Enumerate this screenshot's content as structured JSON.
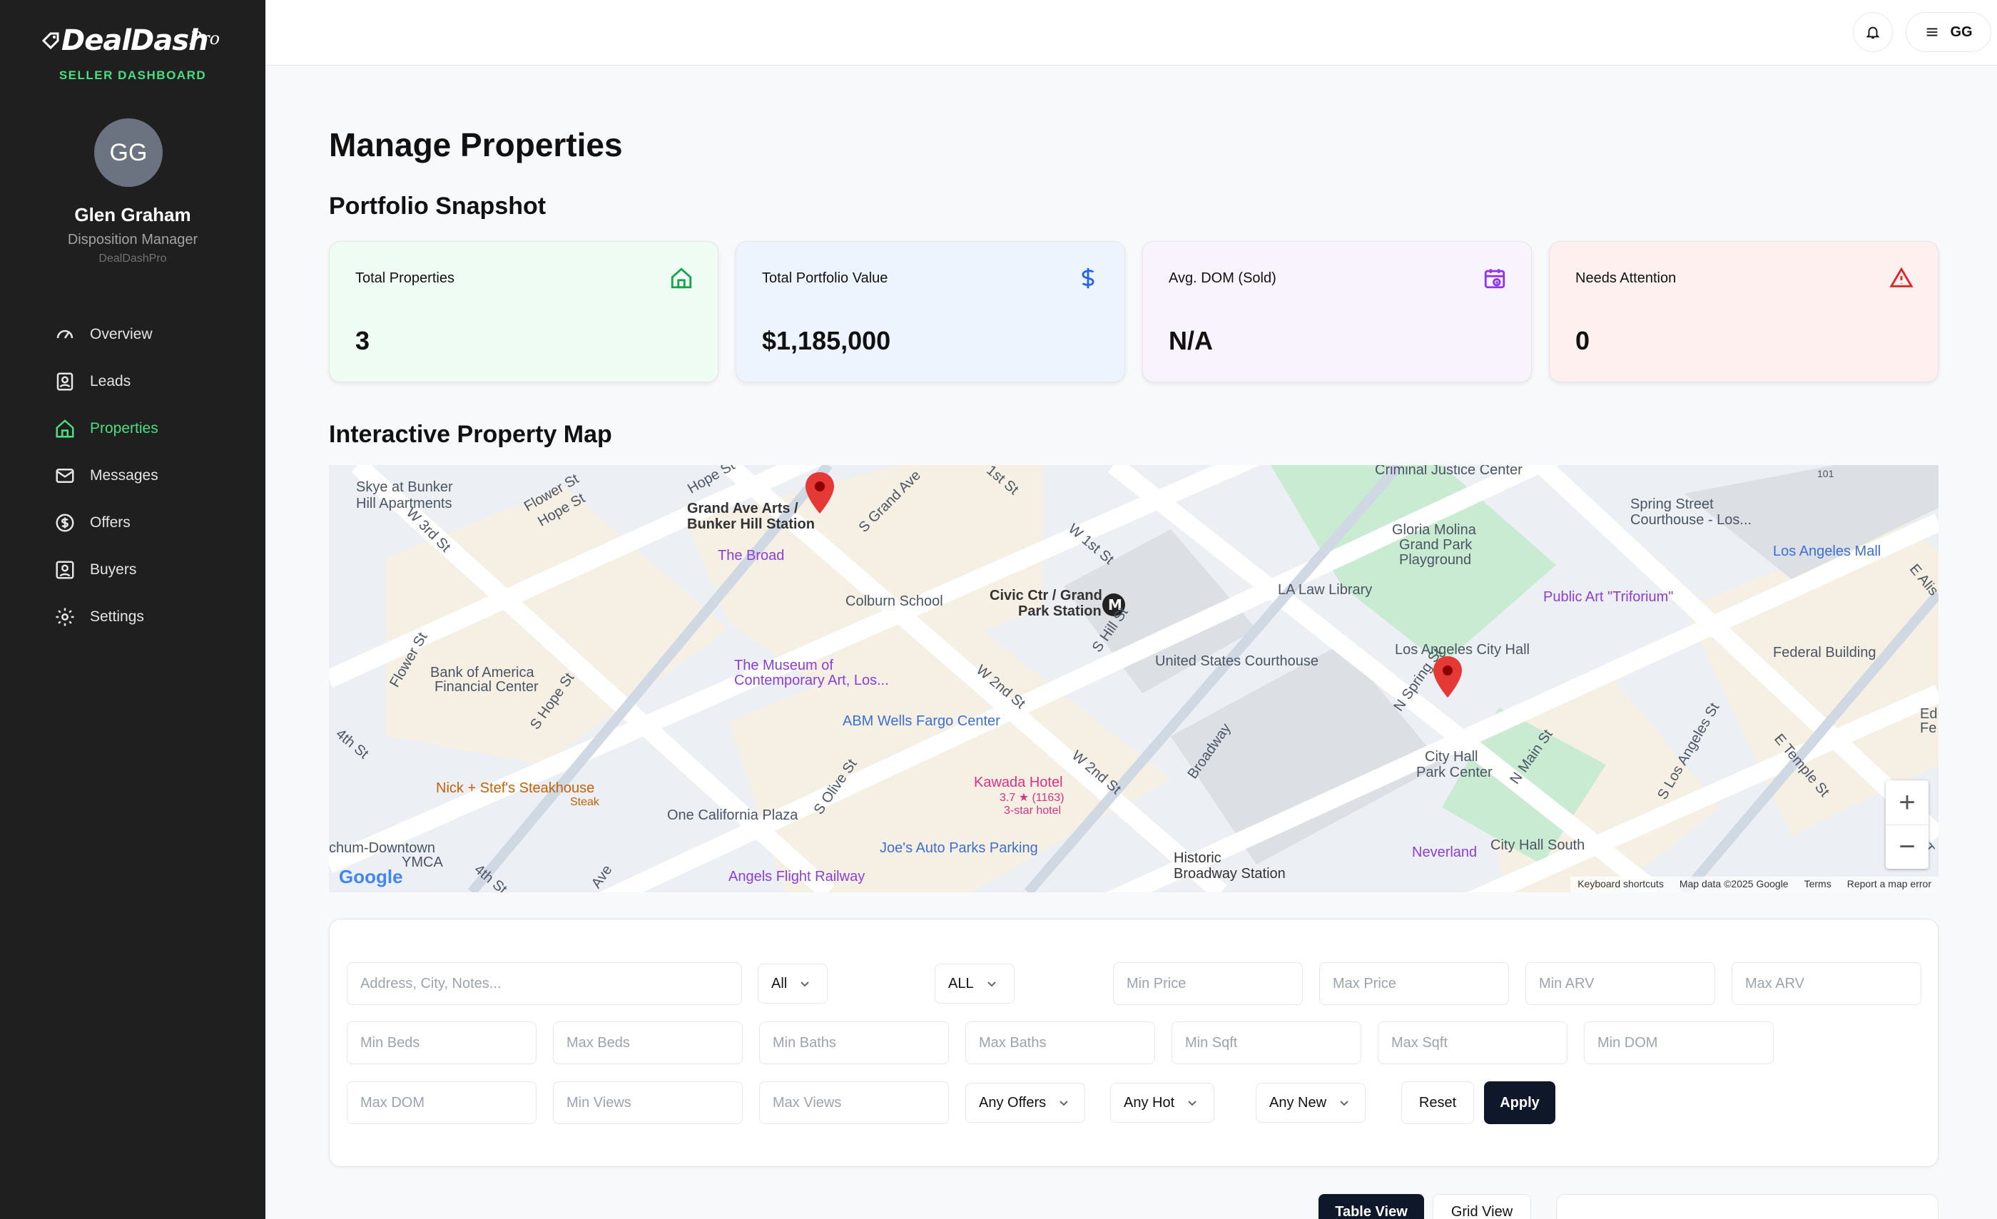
{
  "app": {
    "logo_text": "DealDash",
    "logo_suffix": "Pro",
    "subtitle": "SELLER DASHBOARD"
  },
  "user": {
    "initials": "GG",
    "name": "Glen Graham",
    "role": "Disposition Manager",
    "org": "DealDashPro"
  },
  "nav": [
    {
      "label": "Overview",
      "icon": "gauge-icon"
    },
    {
      "label": "Leads",
      "icon": "contact-icon"
    },
    {
      "label": "Properties",
      "icon": "home-icon",
      "active": true
    },
    {
      "label": "Messages",
      "icon": "mail-icon"
    },
    {
      "label": "Offers",
      "icon": "dollar-circle-icon"
    },
    {
      "label": "Buyers",
      "icon": "user-square-icon"
    },
    {
      "label": "Settings",
      "icon": "gear-icon"
    }
  ],
  "topbar": {
    "avatar_initials": "GG"
  },
  "page": {
    "title": "Manage Properties",
    "snapshot_title": "Portfolio Snapshot",
    "map_title": "Interactive Property Map"
  },
  "cards": [
    {
      "label": "Total Properties",
      "value": "3",
      "bg": "#effcf3",
      "icon_color": "#16a34a",
      "icon": "home-icon"
    },
    {
      "label": "Total Portfolio Value",
      "value": "$1,185,000",
      "bg": "#eef4fe",
      "icon_color": "#2563eb",
      "icon": "dollar-icon"
    },
    {
      "label": "Avg. DOM (Sold)",
      "value": "N/A",
      "bg": "#f8f3fd",
      "icon_color": "#9333ea",
      "icon": "calendar-clock-icon"
    },
    {
      "label": "Needs Attention",
      "value": "0",
      "bg": "#fdf0ef",
      "icon_color": "#dc2626",
      "icon": "alert-triangle-icon"
    }
  ],
  "map": {
    "labels": {
      "skye": "Skye at Bunker\nHill Apartments",
      "flower": "Flower St",
      "hope1": "Hope St",
      "hope2": "Hope St",
      "w3rd": "W 3rd St",
      "grand_ave_arts": "Grand Ave Arts /",
      "bunker_hill_station": "Bunker Hill Station",
      "s_grand_ave": "S Grand Ave",
      "the_broad": "The Broad",
      "colburn": "Colburn School",
      "civic_ctr": "Civic Ctr / Grand",
      "park_station": "Park Station",
      "w1st": "W 1st St",
      "first_st": "1st St",
      "criminal_justice": "Criminal Justice Center",
      "spring_street": "Spring Street",
      "courthouse_los": "Courthouse - Los...",
      "los_angeles_mall": "Los Angeles Mall",
      "gloria_molina": "Gloria Molina",
      "grand_park": "Grand Park",
      "playground": "Playground",
      "la_law_library": "LA Law Library",
      "public_art": "Public Art \"Triforium\"",
      "bank_of_america": "Bank of America",
      "financial_center": "Financial Center",
      "s_hope": "S Hope St",
      "flower_st2": "Flower St",
      "museum1": "The Museum of",
      "museum2": "Contemporary Art, Los...",
      "w2nd": "W 2nd St",
      "s_hill": "S Hill St",
      "us_courthouse": "United States Courthouse",
      "la_city_hall": "Los Angeles City Hall",
      "federal_building": "Federal Building",
      "abm_wells": "ABM Wells Fargo Center",
      "kawada": "Kawada Hotel",
      "kawada_rating": "3.7 ★ (1163)",
      "kawada_stars": "3-star hotel",
      "w2nd2": "W 2nd St",
      "broadway": "Broadway",
      "n_spring": "N Spring St",
      "city_hall_park": "City Hall",
      "park_center": "Park Center",
      "n_main": "N Main St",
      "s_los_angeles": "S Los Angeles St",
      "e_temple": "E Temple St",
      "fourth_st": "4th St",
      "nick_stef": "Nick + Stef's Steakhouse",
      "steak": "Steak",
      "one_california": "One California Plaza",
      "s_olive": "S Olive St",
      "joes_auto": "Joe's Auto Parks Parking",
      "historic1": "Historic",
      "historic2": "Broadway Station",
      "neverland": "Neverland",
      "city_hall_south": "City Hall South",
      "ymca1": "chum-Downtown",
      "ymca2": "YMCA",
      "angels_flight": "Angels Flight Railway",
      "fourth_st2": "4th St",
      "ave": "Ave",
      "e_alis": "E Alis",
      "ed": "Ed",
      "fe": "Fe",
      "e_t": "E T",
      "hwy": "101"
    },
    "footer": [
      "Keyboard shortcuts",
      "Map data ©2025 Google",
      "Terms",
      "Report a map error"
    ],
    "google": "Google",
    "zoom_in": "+",
    "zoom_out": "−"
  },
  "filters": {
    "search_placeholder": "Address, City, Notes...",
    "status_value": "All",
    "type_value": "ALL",
    "min_price": "Min Price",
    "max_price": "Max Price",
    "min_arv": "Min ARV",
    "max_arv": "Max ARV",
    "min_beds": "Min Beds",
    "max_beds": "Max Beds",
    "min_baths": "Min Baths",
    "max_baths": "Max Baths",
    "min_sqft": "Min Sqft",
    "max_sqft": "Max Sqft",
    "min_dom": "Min DOM",
    "max_dom": "Max DOM",
    "min_views": "Min Views",
    "max_views": "Max Views",
    "offers_value": "Any Offers",
    "hot_value": "Any Hot",
    "new_value": "Any New",
    "reset_label": "Reset",
    "apply_label": "Apply"
  },
  "view": {
    "table_label": "Table View",
    "grid_label": "Grid View"
  }
}
